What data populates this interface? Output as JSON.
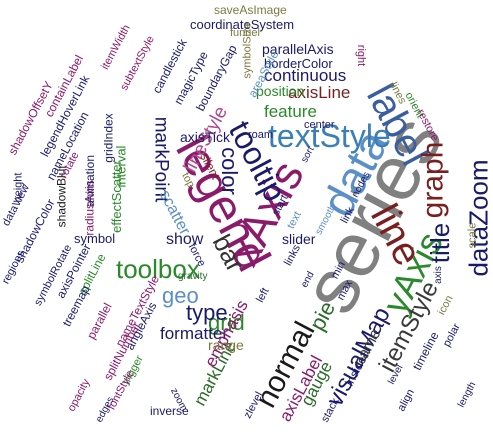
{
  "words": [
    {
      "text": "series",
      "color": "#808080"
    },
    {
      "text": "xAxis",
      "color": "#8b1a6b"
    },
    {
      "text": "legend",
      "color": "#8b1a6b"
    },
    {
      "text": "data",
      "color": "#5b8fc7"
    },
    {
      "text": "yAxis",
      "color": "#2a8a2a"
    },
    {
      "text": "label",
      "color": "#3a5fa0"
    },
    {
      "text": "line",
      "color": "#7a1f1f"
    },
    {
      "text": "textStyle",
      "color": "#3a7fb5"
    },
    {
      "text": "tooltip",
      "color": "#1a1a6b"
    },
    {
      "text": "title",
      "color": "#1a1a6b"
    },
    {
      "text": "graph",
      "color": "#7a1f1f"
    },
    {
      "text": "dataZoom",
      "color": "#1a1a6b"
    },
    {
      "text": "toolbox",
      "color": "#2a8a2a"
    },
    {
      "text": "bar",
      "color": "#333333"
    },
    {
      "text": "color",
      "color": "#1a1a6b"
    },
    {
      "text": "normal",
      "color": "#1a1a1a"
    },
    {
      "text": "visualMap",
      "color": "#1a1a6b"
    },
    {
      "text": "itemStyle",
      "color": "#3a3a3a"
    },
    {
      "text": "pie",
      "color": "#2a6b2a"
    },
    {
      "text": "grid",
      "color": "#2a8a2a"
    },
    {
      "text": "type",
      "color": "#1a1a6b"
    },
    {
      "text": "geo",
      "color": "#5b8fc7"
    },
    {
      "text": "lineStyle",
      "color": "#b04a8a"
    },
    {
      "text": "markPoint",
      "color": "#1a1a6b"
    },
    {
      "text": "feature",
      "color": "#2a8a2a"
    },
    {
      "text": "axisLine",
      "color": "#7a1f1f"
    },
    {
      "text": "continuous",
      "color": "#1a1a6b"
    },
    {
      "text": "position",
      "color": "#2a8a2a"
    },
    {
      "text": "formatter",
      "color": "#1a1a6b"
    },
    {
      "text": "emphasis",
      "color": "#8b1a6b"
    },
    {
      "text": "markLine",
      "color": "#2a6b2a"
    },
    {
      "text": "axisLabel",
      "color": "#8b1a6b"
    },
    {
      "text": "gauge",
      "color": "#2a6b2a"
    },
    {
      "text": "show",
      "color": "#1a1a6b"
    },
    {
      "text": "scatter",
      "color": "#5b8fc7"
    },
    {
      "text": "axisTick",
      "color": "#1a1a6b"
    },
    {
      "text": "slider",
      "color": "#1a1a6b"
    },
    {
      "text": "range",
      "color": "#7a7a40"
    },
    {
      "text": "name",
      "color": "#3a3a3a"
    },
    {
      "text": "parallelAxis",
      "color": "#1a1a6b"
    },
    {
      "text": "borderColor",
      "color": "#1a1a6b"
    },
    {
      "text": "coordinateSystem",
      "color": "#1a1a6b"
    },
    {
      "text": "saveAsImage",
      "color": "#7a7a40"
    },
    {
      "text": "funnel",
      "color": "#7a7a40"
    },
    {
      "text": "symbolSize",
      "color": "#7a7a40"
    },
    {
      "text": "areaStyle",
      "color": "#5b8fc7"
    },
    {
      "text": "boundaryGap",
      "color": "#1a1a6b"
    },
    {
      "text": "magicType",
      "color": "#1a1a6b"
    },
    {
      "text": "candlestick",
      "color": "#1a1a6b"
    },
    {
      "text": "subtextStyle",
      "color": "#8b1a6b"
    },
    {
      "text": "itemWidth",
      "color": "#8b1a6b"
    },
    {
      "text": "containLabel",
      "color": "#8b1a6b"
    },
    {
      "text": "legendHoverLink",
      "color": "#1a1a6b"
    },
    {
      "text": "nameLocation",
      "color": "#1a1a6b"
    },
    {
      "text": "shadowOffsetY",
      "color": "#8b1a6b"
    },
    {
      "text": "gridIndex",
      "color": "#1a1a6b"
    },
    {
      "text": "interval",
      "color": "#2a8a2a"
    },
    {
      "text": "effectScatter",
      "color": "#2a8a2a"
    },
    {
      "text": "radiusAxis",
      "color": "#8b1a6b"
    },
    {
      "text": "animation",
      "color": "#1a1a6b"
    },
    {
      "text": "symbol",
      "color": "#1a1a6b"
    },
    {
      "text": "shadowBlur",
      "color": "#1a1a1a"
    },
    {
      "text": "rotate",
      "color": "#8b1a6b"
    },
    {
      "text": "dataView",
      "color": "#1a1a6b"
    },
    {
      "text": "shadowColor",
      "color": "#1a1a6b"
    },
    {
      "text": "height",
      "color": "#1a1a6b"
    },
    {
      "text": "regions",
      "color": "#1a1a6b"
    },
    {
      "text": "symbolRotate",
      "color": "#1a1a6b"
    },
    {
      "text": "axisPointer",
      "color": "#1a1a6b"
    },
    {
      "text": "splitLine",
      "color": "#2a8a2a"
    },
    {
      "text": "treemap",
      "color": "#1a1a6b"
    },
    {
      "text": "parallel",
      "color": "#8b1a6b"
    },
    {
      "text": "angleAxis",
      "color": "#1a1a6b"
    },
    {
      "text": "nameTextStyle",
      "color": "#8b1a6b"
    },
    {
      "text": "splitNumber",
      "color": "#8b1a6b"
    },
    {
      "text": "trigger",
      "color": "#2a8a2a"
    },
    {
      "text": "fontStyle",
      "color": "#8b1a6b"
    },
    {
      "text": "opacity",
      "color": "#8b1a6b"
    },
    {
      "text": "inverse",
      "color": "#1a1a6b"
    },
    {
      "text": "zlevel",
      "color": "#1a1a6b"
    },
    {
      "text": "stack",
      "color": "#1a1a6b"
    },
    {
      "text": "inside",
      "color": "#1a1a6b"
    },
    {
      "text": "timeline",
      "color": "#1a1a6b"
    },
    {
      "text": "polar",
      "color": "#1a1a6b"
    },
    {
      "text": "align",
      "color": "#1a1a6b"
    },
    {
      "text": "icon",
      "color": "#7a7a40"
    },
    {
      "text": "scale",
      "color": "#7a7a40"
    },
    {
      "text": "orient",
      "color": "#2a8a2a"
    },
    {
      "text": "restore",
      "color": "#8b1a6b"
    },
    {
      "text": "lines",
      "color": "#7a7a40"
    },
    {
      "text": "right",
      "color": "#8b1a6b"
    },
    {
      "text": "center",
      "color": "#1a1a6b"
    },
    {
      "text": "roam",
      "color": "#1a1a6b"
    },
    {
      "text": "silent",
      "color": "#7a1f1f"
    },
    {
      "text": "links",
      "color": "#1a1a6b"
    },
    {
      "text": "start",
      "color": "#1a1a6b"
    },
    {
      "text": "top",
      "color": "#7a7a40"
    },
    {
      "text": "left",
      "color": "#1a1a6b"
    },
    {
      "text": "max",
      "color": "#1a1a6b"
    },
    {
      "text": "min",
      "color": "#1a1a6b"
    },
    {
      "text": "force",
      "color": "#1a1a6b"
    },
    {
      "text": "gravity",
      "color": "#2a6b2a"
    },
    {
      "text": "link",
      "color": "#1a1a6b"
    },
    {
      "text": "nodes",
      "color": "#1a1a6b"
    },
    {
      "text": "text",
      "color": "#5b8fc7"
    },
    {
      "text": "smooth",
      "color": "#5b8fc7"
    },
    {
      "text": "edges",
      "color": "#1a1a6b"
    },
    {
      "text": "axis",
      "color": "#1a1a6b"
    },
    {
      "text": "length",
      "color": "#1a1a6b"
    },
    {
      "text": "sort",
      "color": "#1a1a6b"
    },
    {
      "text": "level",
      "color": "#1a1a6b"
    },
    {
      "text": "end",
      "color": "#1a1a6b"
    },
    {
      "text": "zoom",
      "color": "#1a1a6b"
    }
  ]
}
